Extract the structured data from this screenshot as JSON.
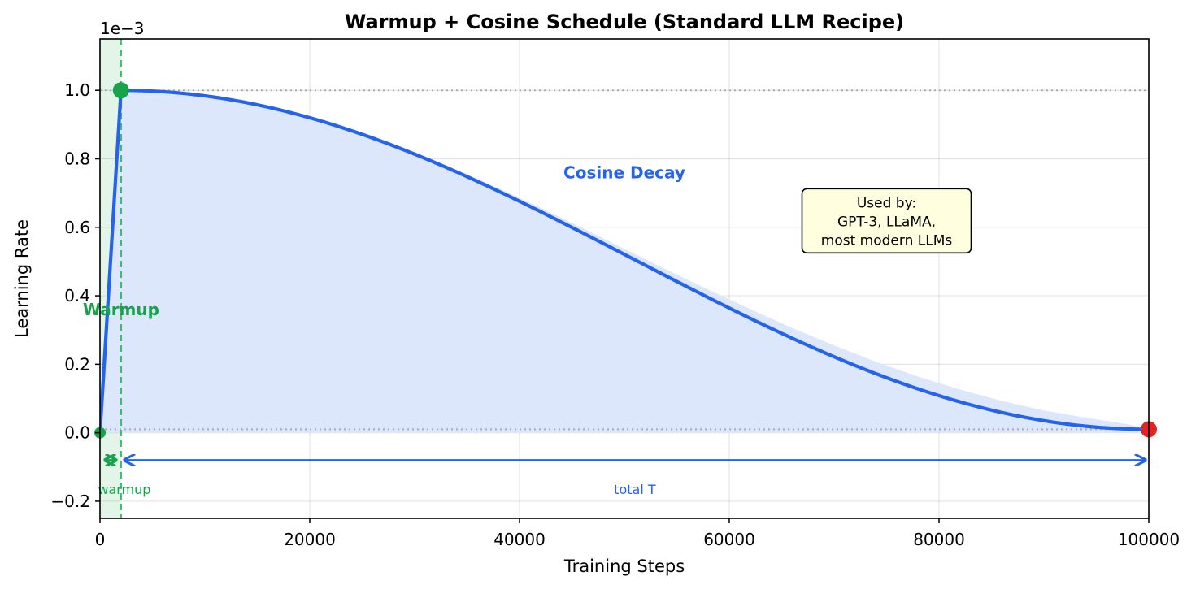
{
  "chart_data": {
    "type": "line",
    "title": "Warmup + Cosine Schedule (Standard LLM Recipe)",
    "xlabel": "Training Steps",
    "ylabel": "Learning Rate",
    "y_scale_label": "1e−3",
    "xlim": [
      0,
      100000
    ],
    "ylim": [
      -0.25,
      1.15
    ],
    "x_ticks": [
      0,
      20000,
      40000,
      60000,
      80000,
      100000
    ],
    "x_tick_labels": [
      "0",
      "20000",
      "40000",
      "60000",
      "80000",
      "100000"
    ],
    "y_ticks": [
      -0.2,
      0.0,
      0.2,
      0.4,
      0.6,
      0.8,
      1.0
    ],
    "y_tick_labels": [
      "−0.2",
      "0.0",
      "0.2",
      "0.4",
      "0.6",
      "0.8",
      "1.0"
    ],
    "grid": true,
    "schedule": {
      "warmup_steps": 2000,
      "total_steps": 100000,
      "peak_lr": 1.0,
      "min_lr": 0.01
    },
    "series": [
      {
        "type": "line",
        "color": "#2563eb",
        "fill": "#dde7fb",
        "x": [
          0,
          2000,
          6000,
          10000,
          14000,
          18000,
          22000,
          26000,
          30000,
          34000,
          38000,
          42000,
          46000,
          50000,
          54000,
          58000,
          62000,
          66000,
          70000,
          74000,
          78000,
          82000,
          86000,
          90000,
          94000,
          98000,
          100000
        ],
        "y": [
          0.0,
          1.0,
          0.996,
          0.984,
          0.964,
          0.937,
          0.903,
          0.863,
          0.818,
          0.768,
          0.714,
          0.657,
          0.598,
          0.537,
          0.477,
          0.418,
          0.361,
          0.306,
          0.255,
          0.207,
          0.164,
          0.126,
          0.093,
          0.065,
          0.044,
          0.025,
          0.01
        ]
      }
    ],
    "markers": [
      {
        "x": 0,
        "y": 0.0,
        "color": "#16a34a",
        "size": 7
      },
      {
        "x": 2000,
        "y": 1.0,
        "color": "#16a34a",
        "size": 10
      },
      {
        "x": 100000,
        "y": 0.01,
        "color": "#dc2626",
        "size": 10
      }
    ],
    "reference_lines": [
      {
        "orientation": "horizontal",
        "y": 1.0,
        "color": "#aaaaaa",
        "style": "dotted"
      },
      {
        "orientation": "horizontal",
        "y": 0.01,
        "color": "#aaaaaa",
        "style": "dotted"
      },
      {
        "orientation": "vertical",
        "x": 2000,
        "color": "#16a34a",
        "style": "dashed"
      }
    ],
    "shaded_region": {
      "x_start": 0,
      "x_end": 2000,
      "color": "#16a34a"
    },
    "annotations": {
      "warmup_label": {
        "text": "Warmup",
        "x": 1000,
        "y": 0.36,
        "color": "#16a34a"
      },
      "cosine_label": {
        "text": "Cosine Decay",
        "x": 50000,
        "y": 0.76,
        "color": "#2563eb"
      },
      "info_box": {
        "lines": [
          "Used by:",
          "GPT-3, LLaMA,",
          "most modern LLMs"
        ],
        "x": 75000,
        "y": 0.62,
        "background": "#ffffe0"
      },
      "warmup_span": {
        "x_start": 0,
        "x_end": 2000,
        "y": -0.08,
        "label": "warmup",
        "label_y": -0.165,
        "color": "#16a34a"
      },
      "total_span": {
        "x_start": 2000,
        "x_end": 100000,
        "y": -0.08,
        "label": "total T",
        "label_y": -0.165,
        "color": "#2563eb"
      }
    }
  }
}
